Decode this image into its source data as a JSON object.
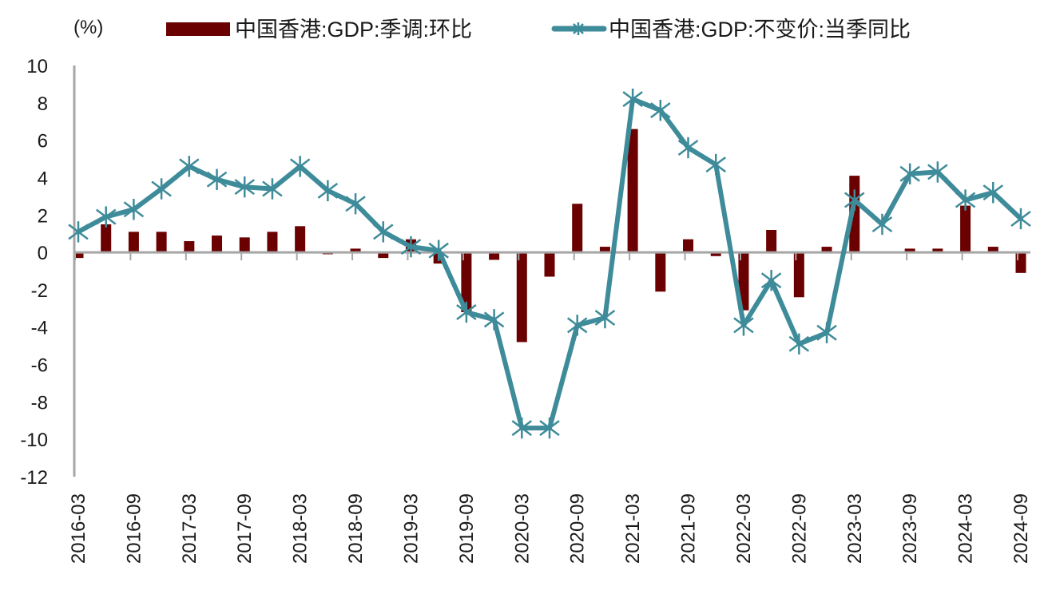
{
  "chart_data": {
    "type": "bar+line",
    "title": "",
    "unit_label": "(%)",
    "xlabel": "",
    "ylabel": "(%)",
    "ylim": [
      -12,
      10
    ],
    "yticks": [
      10,
      8,
      6,
      4,
      2,
      0,
      -2,
      -4,
      -6,
      -8,
      -10,
      -12
    ],
    "grid": false,
    "legend_position": "top",
    "categories": [
      "2016-03",
      "2016-06",
      "2016-09",
      "2016-12",
      "2017-03",
      "2017-06",
      "2017-09",
      "2017-12",
      "2018-03",
      "2018-06",
      "2018-09",
      "2018-12",
      "2019-03",
      "2019-06",
      "2019-09",
      "2019-12",
      "2020-03",
      "2020-06",
      "2020-09",
      "2020-12",
      "2021-03",
      "2021-06",
      "2021-09",
      "2021-12",
      "2022-03",
      "2022-06",
      "2022-09",
      "2022-12",
      "2023-03",
      "2023-06",
      "2023-09",
      "2023-12",
      "2024-03",
      "2024-06",
      "2024-09"
    ],
    "xtick_labels": [
      "2016-03",
      "2016-09",
      "2017-03",
      "2017-09",
      "2018-03",
      "2018-09",
      "2019-03",
      "2019-09",
      "2020-03",
      "2020-09",
      "2021-03",
      "2021-09",
      "2022-03",
      "2022-09",
      "2023-03",
      "2023-09",
      "2024-03",
      "2024-09"
    ],
    "series": [
      {
        "name": "中国香港:GDP:季调:环比",
        "type": "bar",
        "color": "#6b0000",
        "values": [
          -0.3,
          1.5,
          1.1,
          1.1,
          0.6,
          0.9,
          0.8,
          1.1,
          1.4,
          -0.1,
          0.2,
          -0.3,
          0.7,
          -0.6,
          -3.2,
          -0.4,
          -4.8,
          -1.3,
          2.6,
          0.3,
          6.6,
          -2.1,
          0.7,
          -0.2,
          -3.1,
          1.2,
          -2.4,
          0.3,
          4.1,
          0.0,
          0.2,
          0.2,
          2.5,
          0.3,
          -1.1
        ]
      },
      {
        "name": "中国香港:GDP:不变价:当季同比",
        "type": "line",
        "marker": "asterisk",
        "color": "#3e8b9a",
        "values": [
          1.1,
          1.9,
          2.3,
          3.4,
          4.6,
          3.9,
          3.5,
          3.4,
          4.6,
          3.3,
          2.6,
          1.1,
          0.3,
          0.1,
          -3.2,
          -3.6,
          -9.4,
          -9.4,
          -3.9,
          -3.5,
          8.2,
          7.6,
          5.6,
          4.7,
          -3.9,
          -1.5,
          -4.9,
          -4.3,
          2.8,
          1.5,
          4.2,
          4.3,
          2.8,
          3.2,
          1.8
        ]
      }
    ]
  }
}
